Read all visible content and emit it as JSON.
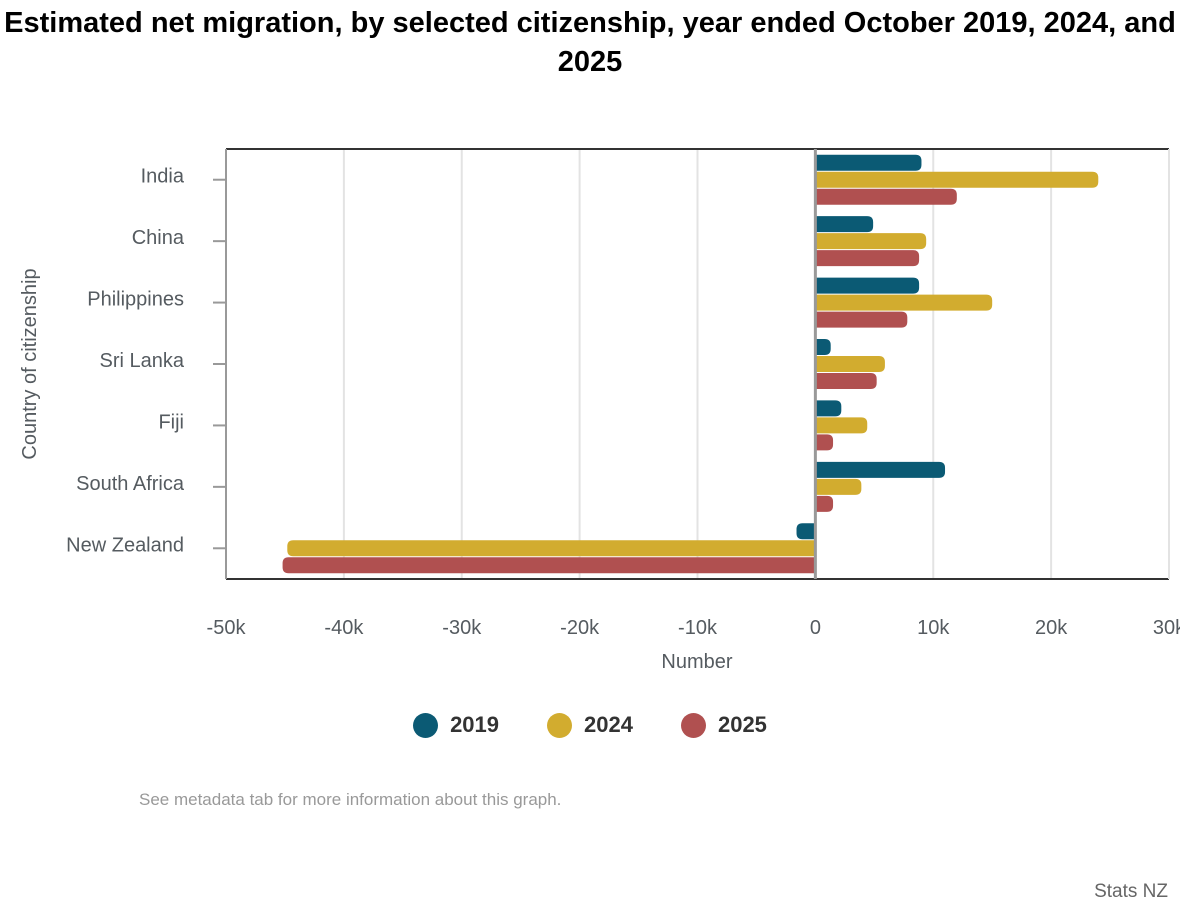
{
  "chart_data": {
    "type": "bar",
    "orientation": "horizontal",
    "title": "Estimated net migration, by selected citizenship, year ended October 2019, 2024, and 2025",
    "xlabel": "Number",
    "ylabel": "Country of citizenship",
    "categories": [
      "India",
      "China",
      "Philippines",
      "Sri Lanka",
      "Fiji",
      "South Africa",
      "New Zealand"
    ],
    "series": [
      {
        "name": "2019",
        "color": "#0b5a74",
        "values": [
          9000,
          4900,
          8800,
          1300,
          2200,
          11000,
          -1600
        ]
      },
      {
        "name": "2024",
        "color": "#d2ac2f",
        "values": [
          24000,
          9400,
          15000,
          5900,
          4400,
          3900,
          -44800
        ]
      },
      {
        "name": "2025",
        "color": "#b05050",
        "values": [
          12000,
          8800,
          7800,
          5200,
          1500,
          1500,
          -45200
        ]
      }
    ],
    "xlim": [
      -50000,
      30000
    ],
    "xticks": [
      -50000,
      -40000,
      -30000,
      -20000,
      -10000,
      0,
      10000,
      20000,
      30000
    ],
    "xtick_labels": [
      "-50k",
      "-40k",
      "-30k",
      "-20k",
      "-10k",
      "0",
      "10k",
      "20k",
      "30k"
    ],
    "grid": true,
    "legend_position": "bottom"
  },
  "note": "See metadata tab for more information about this graph.",
  "credit": "Stats NZ"
}
